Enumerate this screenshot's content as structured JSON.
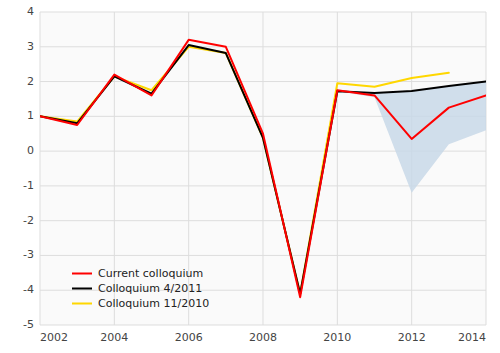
{
  "chart_data": {
    "type": "line",
    "series": [
      {
        "name": "Current colloquium",
        "color": "#FF0000",
        "x": [
          2002,
          2003,
          2004,
          2005,
          2006,
          2007,
          2008,
          2009,
          2010,
          2011,
          2012,
          2013,
          2014
        ],
        "values": [
          1.0,
          0.75,
          2.2,
          1.6,
          3.2,
          3.0,
          0.5,
          -4.2,
          1.75,
          1.6,
          0.35,
          1.25,
          1.6
        ]
      },
      {
        "name": "Colloquium 4/2011",
        "color": "#000000",
        "x": [
          2002,
          2003,
          2004,
          2005,
          2006,
          2007,
          2008,
          2009,
          2010,
          2011,
          2012,
          2013,
          2014
        ],
        "values": [
          1.0,
          0.8,
          2.15,
          1.65,
          3.05,
          2.82,
          0.38,
          -4.1,
          1.72,
          1.67,
          1.73,
          1.87,
          2.0
        ]
      },
      {
        "name": "Colloquium 11/2010",
        "color": "#FFD700",
        "x": [
          2002,
          2003,
          2004,
          2005,
          2006,
          2007,
          2008,
          2009,
          2010,
          2011,
          2012,
          2013
        ],
        "values": [
          1.0,
          0.85,
          2.15,
          1.75,
          3.0,
          2.82,
          0.38,
          -4.1,
          1.95,
          1.85,
          2.1,
          2.25
        ]
      }
    ],
    "band": {
      "color": "#C8D8E8",
      "x": [
        2010,
        2011,
        2012,
        2013,
        2014
      ],
      "upper": [
        1.72,
        1.67,
        1.73,
        1.87,
        2.0
      ],
      "lower": [
        1.72,
        1.55,
        -1.2,
        0.2,
        0.6
      ]
    },
    "xlim": [
      2002,
      2014
    ],
    "ylim": [
      -5,
      4
    ],
    "xticks": [
      2002,
      2004,
      2006,
      2008,
      2010,
      2012,
      2014
    ],
    "yticks": [
      -5,
      -4,
      -3,
      -2,
      -1,
      0,
      1,
      2,
      3,
      4
    ],
    "grid": true,
    "legend": "lower left"
  }
}
